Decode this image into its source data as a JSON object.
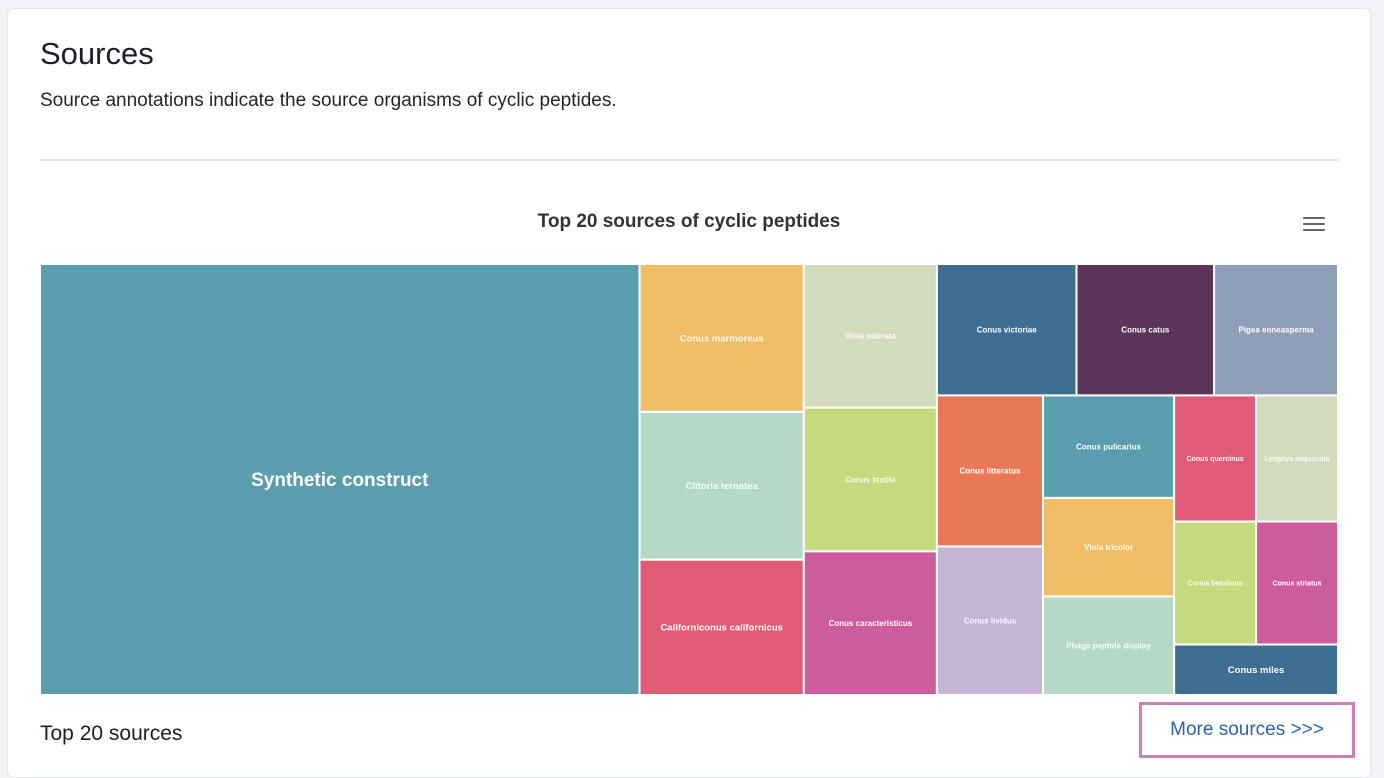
{
  "page": {
    "title": "Sources",
    "description": "Source annotations indicate the source organisms of cyclic peptides."
  },
  "chart_menu_icon": "hamburger-menu-icon",
  "section": {
    "heading": "Top 20 sources",
    "more_link": "More sources >>>"
  },
  "chart_data": {
    "type": "treemap",
    "title": "Top 20 sources of cyclic peptides",
    "series": [
      {
        "name": "Synthetic construct",
        "value": 1000,
        "color": "#5a9daf"
      },
      {
        "name": "Conus marmoreus",
        "value": 94,
        "color": "#efbd65"
      },
      {
        "name": "Clitoria ternatea",
        "value": 94,
        "color": "#b6d8c6"
      },
      {
        "name": "Californiconus californicus",
        "value": 86,
        "color": "#e15b76"
      },
      {
        "name": "Viola odorata",
        "value": 74,
        "color": "#d3dbbd"
      },
      {
        "name": "Conus textile",
        "value": 74,
        "color": "#c4da7d"
      },
      {
        "name": "Conus caracteristicus",
        "value": 74,
        "color": "#cd5c9d"
      },
      {
        "name": "Conus victoriae",
        "value": 71,
        "color": "#3f6e95"
      },
      {
        "name": "Conus catus",
        "value": 70,
        "color": "#5a3459"
      },
      {
        "name": "Pigea enneasperma",
        "value": 63,
        "color": "#8f9fb7"
      },
      {
        "name": "Conus litteratus",
        "value": 62,
        "color": "#e97857"
      },
      {
        "name": "Conus lividus",
        "value": 61,
        "color": "#c6b5d7"
      },
      {
        "name": "Conus pulicarius",
        "value": 52,
        "color": "#5a9daf"
      },
      {
        "name": "Viola tricolor",
        "value": 50,
        "color": "#efbd65"
      },
      {
        "name": "Phage peptide display",
        "value": 50,
        "color": "#b6d8c6"
      },
      {
        "name": "Conus quercinus",
        "value": 40,
        "color": "#e15b76"
      },
      {
        "name": "Lyngbya majuscula",
        "value": 40,
        "color": "#d3dbbd"
      },
      {
        "name": "Conus betulinus",
        "value": 39,
        "color": "#c4da7d"
      },
      {
        "name": "Conus striatus",
        "value": 39,
        "color": "#cd5c9d"
      },
      {
        "name": "Conus miles",
        "value": 32,
        "color": "#3f6e95"
      }
    ]
  }
}
